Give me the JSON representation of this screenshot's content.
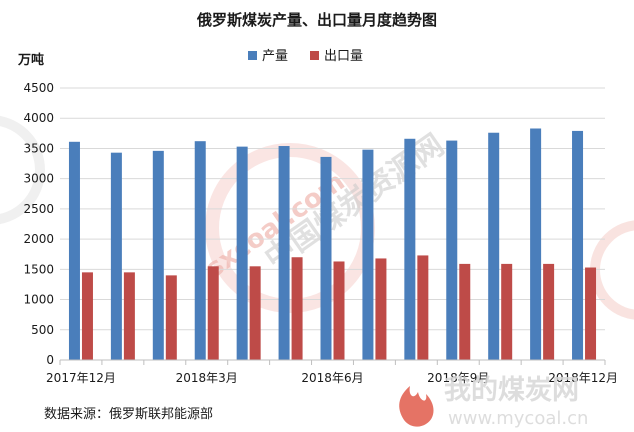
{
  "chart_data": {
    "type": "bar",
    "title": "俄罗斯煤炭产量、出口量月度趋势图",
    "ylabel": "万吨",
    "ylim": [
      0,
      4500
    ],
    "yticks": [
      0,
      500,
      1000,
      1500,
      2000,
      2500,
      3000,
      3500,
      4000,
      4500
    ],
    "grid": true,
    "legend_position": "top",
    "categories": [
      "2017-12",
      "2018-01",
      "2018-02",
      "2018-03",
      "2018-04",
      "2018-05",
      "2018-06",
      "2018-07",
      "2018-08",
      "2018-09",
      "2018-10",
      "2018-11",
      "2018-12"
    ],
    "x_tick_labels": [
      {
        "index": 0,
        "label": "2017年12月"
      },
      {
        "index": 3,
        "label": "2018年3月"
      },
      {
        "index": 6,
        "label": "2018年6月"
      },
      {
        "index": 9,
        "label": "2018年9月"
      },
      {
        "index": 12,
        "label": "2018年12月"
      }
    ],
    "series": [
      {
        "name": "产量",
        "color": "#4a7ebb",
        "values": [
          3610,
          3430,
          3460,
          3620,
          3530,
          3540,
          3360,
          3480,
          3660,
          3630,
          3760,
          3830,
          3790
        ]
      },
      {
        "name": "出口量",
        "color": "#be4b48",
        "values": [
          1450,
          1450,
          1400,
          1550,
          1550,
          1700,
          1630,
          1680,
          1730,
          1590,
          1590,
          1590,
          1530
        ]
      }
    ]
  },
  "source": "数据来源：俄罗斯联邦能源部",
  "watermarks": {
    "site_domain": "sxcoal.com",
    "site_name_cn": "中国煤炭资源网",
    "logo_name": "我的煤炭网",
    "logo_url": "www.mycoal.cn"
  }
}
